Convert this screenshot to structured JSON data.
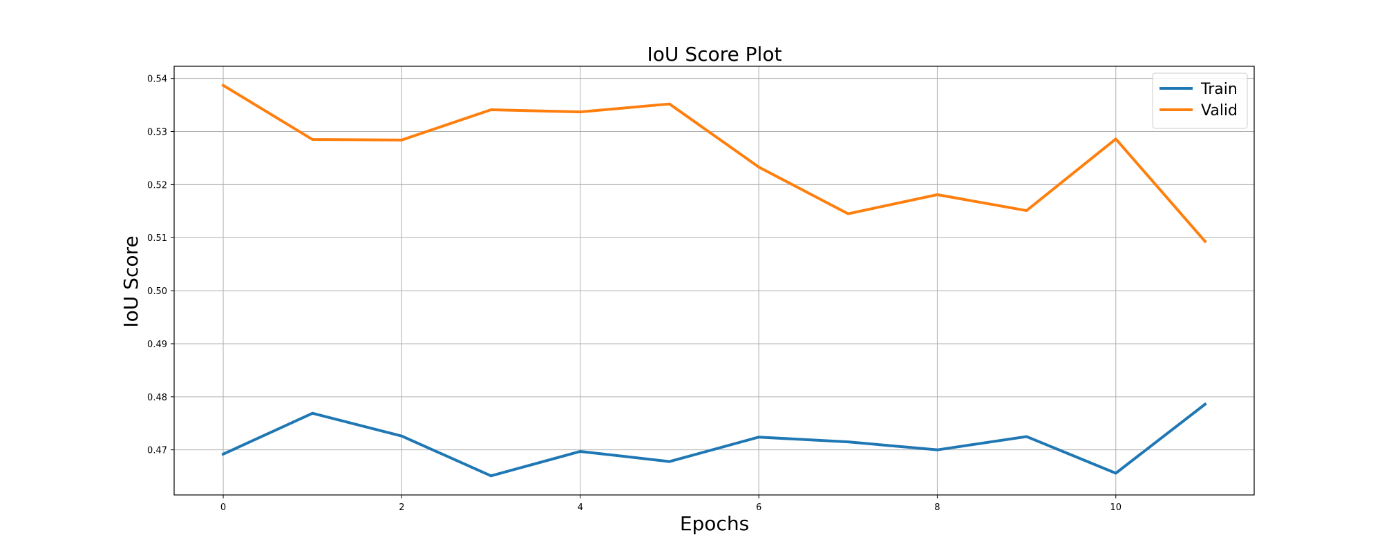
{
  "chart_data": {
    "type": "line",
    "title": "IoU Score Plot",
    "xlabel": "Epochs",
    "ylabel": "IoU Score",
    "x": [
      0,
      1,
      2,
      3,
      4,
      5,
      6,
      7,
      8,
      9,
      10,
      11
    ],
    "x_ticks": [
      0,
      2,
      4,
      6,
      8,
      10
    ],
    "x_tick_labels": [
      "0",
      "2",
      "4",
      "6",
      "8",
      "10"
    ],
    "y_ticks": [
      0.47,
      0.48,
      0.49,
      0.5,
      0.51,
      0.52,
      0.53,
      0.54
    ],
    "y_tick_labels": [
      "0.47",
      "0.48",
      "0.49",
      "0.50",
      "0.51",
      "0.52",
      "0.53",
      "0.54"
    ],
    "xlim": [
      -0.55,
      11.55
    ],
    "ylim": [
      0.4615,
      0.5423
    ],
    "grid": true,
    "legend_position": "top-right",
    "series": [
      {
        "name": "Train",
        "color": "#1f77b4",
        "values": [
          0.4692,
          0.4769,
          0.4726,
          0.4651,
          0.4697,
          0.4678,
          0.4724,
          0.4715,
          0.47,
          0.4725,
          0.4656,
          0.4786
        ]
      },
      {
        "name": "Valid",
        "color": "#ff7f0e",
        "values": [
          0.5387,
          0.5285,
          0.5284,
          0.5341,
          0.5337,
          0.5352,
          0.5233,
          0.5145,
          0.5181,
          0.5151,
          0.5286,
          0.5093
        ]
      }
    ]
  }
}
